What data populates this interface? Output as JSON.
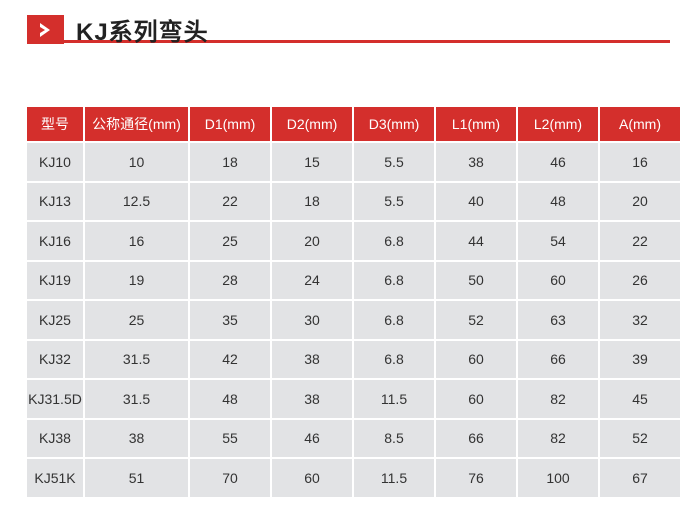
{
  "title": "KJ系列弯头",
  "colors": {
    "accent": "#d42f2c",
    "cell": "#e2e3e5"
  },
  "icon": "chevron-right-icon",
  "table": {
    "headers": [
      "型号",
      "公称通径(mm)",
      "D1(mm)",
      "D2(mm)",
      "D3(mm)",
      "L1(mm)",
      "L2(mm)",
      "A(mm)"
    ],
    "rows": [
      [
        "KJ10",
        "10",
        "18",
        "15",
        "5.5",
        "38",
        "46",
        "16"
      ],
      [
        "KJ13",
        "12.5",
        "22",
        "18",
        "5.5",
        "40",
        "48",
        "20"
      ],
      [
        "KJ16",
        "16",
        "25",
        "20",
        "6.8",
        "44",
        "54",
        "22"
      ],
      [
        "KJ19",
        "19",
        "28",
        "24",
        "6.8",
        "50",
        "60",
        "26"
      ],
      [
        "KJ25",
        "25",
        "35",
        "30",
        "6.8",
        "52",
        "63",
        "32"
      ],
      [
        "KJ32",
        "31.5",
        "42",
        "38",
        "6.8",
        "60",
        "66",
        "39"
      ],
      [
        "KJ31.5D",
        "31.5",
        "48",
        "38",
        "11.5",
        "60",
        "82",
        "45"
      ],
      [
        "KJ38",
        "38",
        "55",
        "46",
        "8.5",
        "66",
        "82",
        "52"
      ],
      [
        "KJ51K",
        "51",
        "70",
        "60",
        "11.5",
        "76",
        "100",
        "67"
      ]
    ]
  }
}
